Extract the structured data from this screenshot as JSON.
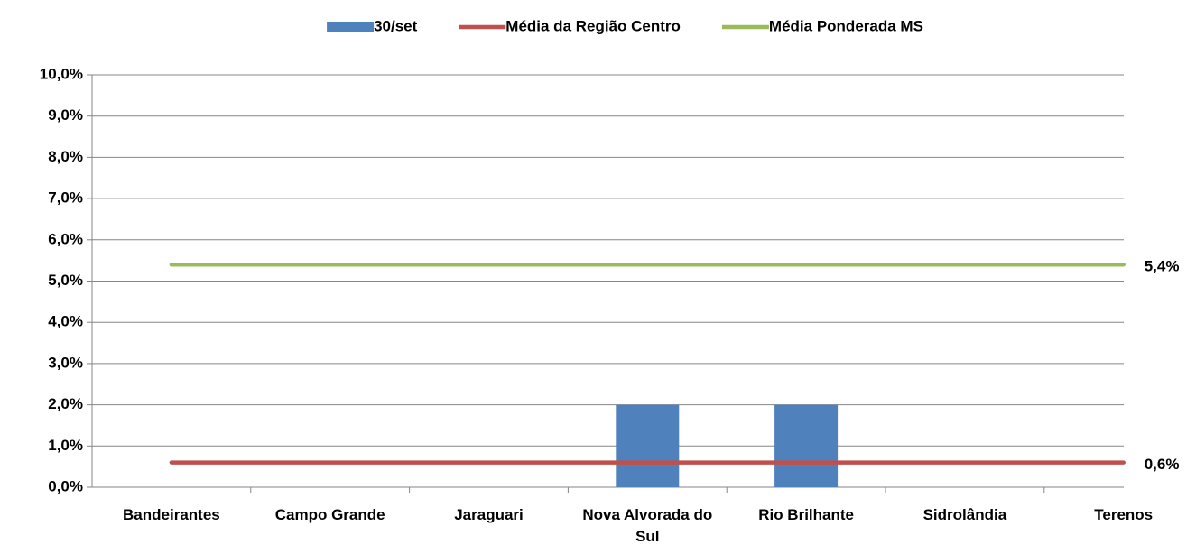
{
  "chart_data": {
    "type": "bar",
    "categories": [
      "Bandeirantes",
      "Campo Grande",
      "Jaraguari",
      "Nova Alvorada do Sul",
      "Rio Brilhante",
      "Sidrolândia",
      "Terenos"
    ],
    "series": [
      {
        "name": "30/set",
        "type": "bar",
        "color": "#4f81bd",
        "values": [
          0,
          0,
          0,
          2.0,
          2.0,
          0,
          0
        ]
      },
      {
        "name": "Média da Região Centro",
        "type": "line",
        "color": "#c0504d",
        "values": [
          0.6,
          0.6,
          0.6,
          0.6,
          0.6,
          0.6,
          0.6
        ],
        "value_labels": [
          null,
          null,
          null,
          null,
          null,
          null,
          "0,6%"
        ]
      },
      {
        "name": "Média Ponderada MS",
        "type": "line",
        "color": "#9bbb59",
        "values": [
          5.4,
          5.4,
          5.4,
          5.4,
          5.4,
          5.4,
          5.4
        ],
        "value_labels": [
          null,
          null,
          null,
          null,
          null,
          null,
          "5,4%"
        ]
      }
    ],
    "ylim": [
      0,
      10
    ],
    "yticks": [
      {
        "value": 0,
        "label": "0,0%"
      },
      {
        "value": 1,
        "label": "1,0%"
      },
      {
        "value": 2,
        "label": "2,0%"
      },
      {
        "value": 3,
        "label": "3,0%"
      },
      {
        "value": 4,
        "label": "4,0%"
      },
      {
        "value": 5,
        "label": "5,0%"
      },
      {
        "value": 6,
        "label": "6,0%"
      },
      {
        "value": 7,
        "label": "7,0%"
      },
      {
        "value": 8,
        "label": "8,0%"
      },
      {
        "value": 9,
        "label": "9,0%"
      },
      {
        "value": 10,
        "label": "10,0%"
      }
    ],
    "grid": true,
    "legend": "top"
  }
}
